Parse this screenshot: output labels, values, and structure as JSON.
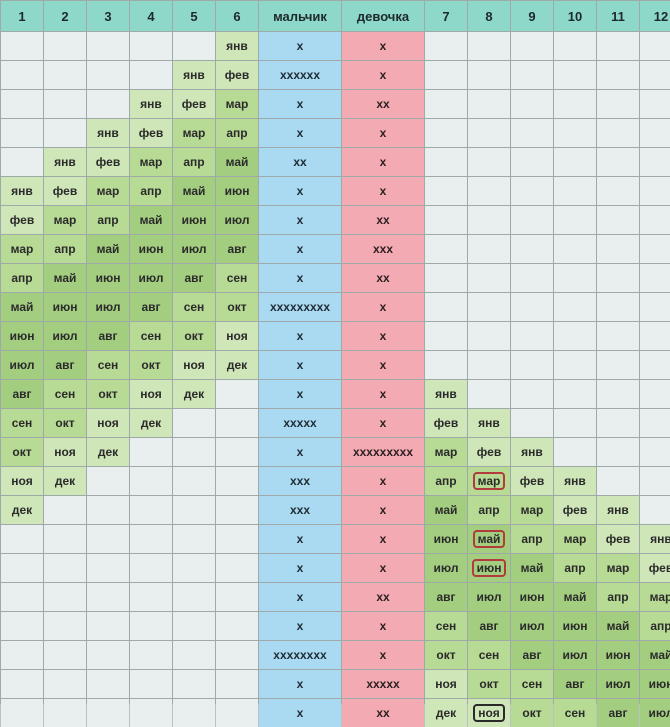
{
  "headers": [
    "1",
    "2",
    "3",
    "4",
    "5",
    "6",
    "мальчик",
    "девочка",
    "7",
    "8",
    "9",
    "10",
    "11",
    "12"
  ],
  "boy": [
    "x",
    "xxxxxx",
    "x",
    "x",
    "xx",
    "x",
    "x",
    "x",
    "x",
    "xxxxxxxxx",
    "x",
    "x",
    "x",
    "xxxxx",
    "x",
    "xxx",
    "xxx",
    "x",
    "x",
    "x",
    "x",
    "xxxxxxxx",
    "x",
    "x"
  ],
  "girl": [
    "x",
    "x",
    "xx",
    "x",
    "x",
    "x",
    "xx",
    "xxx",
    "xx",
    "x",
    "x",
    "x",
    "x",
    "x",
    "xxxxxxxxx",
    "x",
    "x",
    "x",
    "x",
    "xx",
    "x",
    "x",
    "xxxxx",
    "xx"
  ],
  "months": [
    "янв",
    "фев",
    "мар",
    "апр",
    "май",
    "июн",
    "июл",
    "авг",
    "сен",
    "окт",
    "ноя",
    "дек"
  ],
  "highlighted": [
    {
      "column": "8",
      "month": "мар",
      "color": "#b23b3b"
    },
    {
      "column": "8",
      "month": "май",
      "color": "#b23b3b"
    },
    {
      "column": "8",
      "month": "июн",
      "color": "#b23b3b"
    },
    {
      "column": "8",
      "month": "ноя",
      "color": "#2a2a2a"
    }
  ],
  "colors": {
    "header": "#8ed8c9",
    "boy_column": "#a9daf2",
    "girl_column": "#f3aab2",
    "month_cell_green": "#b7da95",
    "empty_cell": "#e9eeee"
  }
}
